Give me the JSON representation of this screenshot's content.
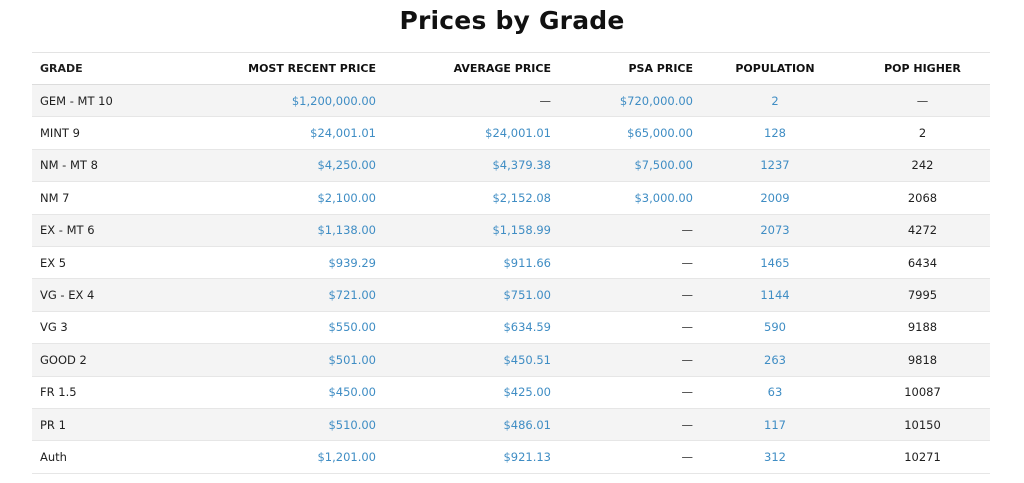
{
  "title": "Prices by Grade",
  "columns": {
    "grade": "GRADE",
    "recent": "MOST RECENT PRICE",
    "average": "AVERAGE PRICE",
    "psa": "PSA PRICE",
    "population": "POPULATION",
    "pop_higher": "POP HIGHER"
  },
  "colors": {
    "link": "#3f8dc4",
    "text": "#1f1f1f",
    "stripe": "#f4f4f4"
  },
  "rows": [
    {
      "grade": "GEM - MT 10",
      "recent": "$1,200,000.00",
      "average": "—",
      "psa": "$720,000.00",
      "population": "2",
      "pop_higher": "—"
    },
    {
      "grade": "MINT 9",
      "recent": "$24,001.01",
      "average": "$24,001.01",
      "psa": "$65,000.00",
      "population": "128",
      "pop_higher": "2"
    },
    {
      "grade": "NM - MT 8",
      "recent": "$4,250.00",
      "average": "$4,379.38",
      "psa": "$7,500.00",
      "population": "1237",
      "pop_higher": "242"
    },
    {
      "grade": "NM 7",
      "recent": "$2,100.00",
      "average": "$2,152.08",
      "psa": "$3,000.00",
      "population": "2009",
      "pop_higher": "2068"
    },
    {
      "grade": "EX - MT 6",
      "recent": "$1,138.00",
      "average": "$1,158.99",
      "psa": "—",
      "population": "2073",
      "pop_higher": "4272"
    },
    {
      "grade": "EX 5",
      "recent": "$939.29",
      "average": "$911.66",
      "psa": "—",
      "population": "1465",
      "pop_higher": "6434"
    },
    {
      "grade": "VG - EX 4",
      "recent": "$721.00",
      "average": "$751.00",
      "psa": "—",
      "population": "1144",
      "pop_higher": "7995"
    },
    {
      "grade": "VG 3",
      "recent": "$550.00",
      "average": "$634.59",
      "psa": "—",
      "population": "590",
      "pop_higher": "9188"
    },
    {
      "grade": "GOOD 2",
      "recent": "$501.00",
      "average": "$450.51",
      "psa": "—",
      "population": "263",
      "pop_higher": "9818"
    },
    {
      "grade": "FR 1.5",
      "recent": "$450.00",
      "average": "$425.00",
      "psa": "—",
      "population": "63",
      "pop_higher": "10087"
    },
    {
      "grade": "PR 1",
      "recent": "$510.00",
      "average": "$486.01",
      "psa": "—",
      "population": "117",
      "pop_higher": "10150"
    },
    {
      "grade": "Auth",
      "recent": "$1,201.00",
      "average": "$921.13",
      "psa": "—",
      "population": "312",
      "pop_higher": "10271"
    }
  ]
}
